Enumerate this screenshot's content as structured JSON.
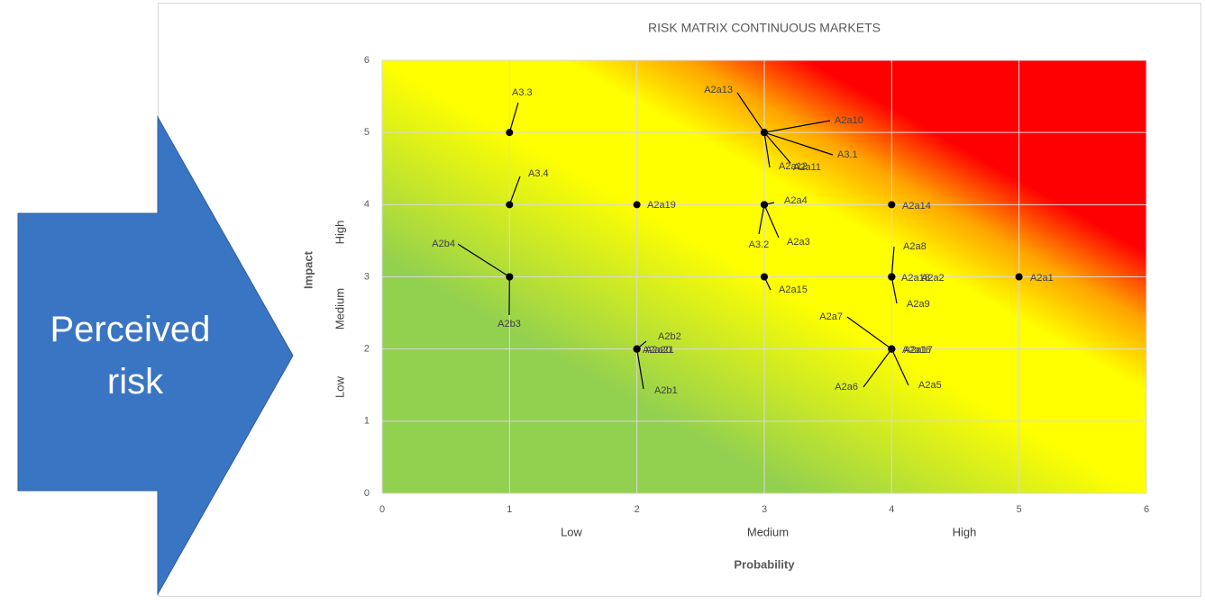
{
  "arrow_text": "Perceived risk",
  "chart_data": {
    "type": "scatter",
    "title": "RISK MATRIX CONTINUOUS MARKETS",
    "x_label": "Probability",
    "y_label": "Impact",
    "x_categories": [
      "Low",
      "Medium",
      "High"
    ],
    "y_categories": [
      "Low",
      "Medium",
      "High"
    ],
    "xlim": [
      0,
      6
    ],
    "ylim": [
      0,
      6
    ],
    "xticks": [
      0,
      1,
      2,
      3,
      4,
      5,
      6
    ],
    "yticks": [
      0,
      1,
      2,
      3,
      4,
      5,
      6
    ],
    "grid": true,
    "color": "#000000",
    "points": [
      {
        "label": "A3.3",
        "x": 1,
        "y": 5
      },
      {
        "label": "A3.4",
        "x": 1,
        "y": 4
      },
      {
        "label": "A2b4",
        "x": 1,
        "y": 3
      },
      {
        "label": "A2b3",
        "x": 1,
        "y": 3
      },
      {
        "label": "A2a19",
        "x": 2,
        "y": 4
      },
      {
        "label": "A2b2",
        "x": 2,
        "y": 2
      },
      {
        "label": "A2a20",
        "x": 2,
        "y": 2
      },
      {
        "label": "A2a21",
        "x": 2,
        "y": 2
      },
      {
        "label": "A2b1",
        "x": 2,
        "y": 2
      },
      {
        "label": "A2a13",
        "x": 3,
        "y": 5
      },
      {
        "label": "A2a10",
        "x": 3,
        "y": 5
      },
      {
        "label": "A3.1",
        "x": 3,
        "y": 5
      },
      {
        "label": "A2a12",
        "x": 3,
        "y": 5
      },
      {
        "label": "A2a11",
        "x": 3,
        "y": 5
      },
      {
        "label": "A2a4",
        "x": 3,
        "y": 4
      },
      {
        "label": "A3.2",
        "x": 3,
        "y": 4
      },
      {
        "label": "A2a3",
        "x": 3,
        "y": 4
      },
      {
        "label": "A2a15",
        "x": 3,
        "y": 3
      },
      {
        "label": "A2a14",
        "x": 4,
        "y": 4
      },
      {
        "label": "A2a8",
        "x": 4,
        "y": 3
      },
      {
        "label": "A2a18",
        "x": 4,
        "y": 3
      },
      {
        "label": "A2a2",
        "x": 4,
        "y": 3
      },
      {
        "label": "A2a9",
        "x": 4,
        "y": 3
      },
      {
        "label": "A2a1",
        "x": 5,
        "y": 3
      },
      {
        "label": "A2a7",
        "x": 4,
        "y": 2
      },
      {
        "label": "A2a16",
        "x": 4,
        "y": 2
      },
      {
        "label": "A2a17",
        "x": 4,
        "y": 2
      },
      {
        "label": "A2a6",
        "x": 4,
        "y": 2
      },
      {
        "label": "A2a5",
        "x": 4,
        "y": 2
      }
    ]
  }
}
